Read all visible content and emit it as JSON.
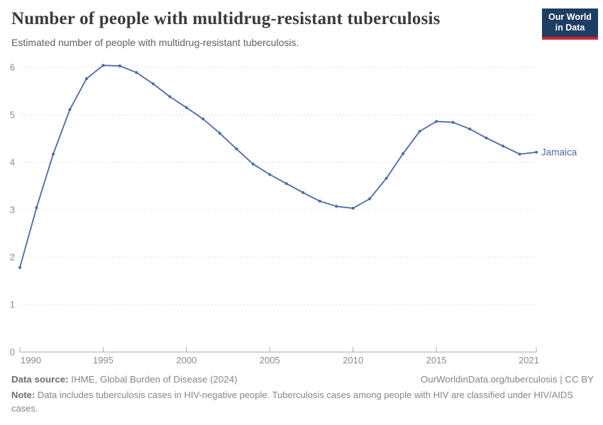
{
  "header": {
    "title": "Number of people with multidrug-resistant tuberculosis",
    "subtitle": "Estimated number of people with multidrug-resistant tuberculosis.",
    "logo": {
      "line1": "Our World",
      "line2": "in Data"
    }
  },
  "chart_data": {
    "type": "line",
    "title": "Number of people with multidrug-resistant tuberculosis",
    "xlabel": "",
    "ylabel": "",
    "x": [
      1990,
      1991,
      1992,
      1993,
      1994,
      1995,
      1996,
      1997,
      1998,
      1999,
      2000,
      2001,
      2002,
      2003,
      2004,
      2005,
      2006,
      2007,
      2008,
      2009,
      2010,
      2011,
      2012,
      2013,
      2014,
      2015,
      2016,
      2017,
      2018,
      2019,
      2020,
      2021
    ],
    "series": [
      {
        "name": "Jamaica",
        "color": "#4c69a5",
        "values": [
          1.78,
          3.04,
          4.17,
          5.11,
          5.76,
          6.04,
          6.03,
          5.89,
          5.65,
          5.38,
          5.15,
          4.91,
          4.61,
          4.28,
          3.96,
          3.74,
          3.55,
          3.36,
          3.18,
          3.07,
          3.03,
          3.23,
          3.66,
          4.18,
          4.65,
          4.86,
          4.84,
          4.7,
          4.51,
          4.34,
          4.17,
          4.21
        ]
      }
    ],
    "x_ticks": [
      1990,
      1995,
      2000,
      2005,
      2010,
      2015,
      2021
    ],
    "y_ticks": [
      0,
      1,
      2,
      3,
      4,
      5,
      6
    ],
    "xlim": [
      1990,
      2021
    ],
    "ylim": [
      0,
      6.3
    ],
    "grid": "horizontal-dashed",
    "legend_position": "end-of-line-label"
  },
  "colors": {
    "line": "#4c69a5",
    "grid": "#dcdcdc",
    "axis": "#a9a9a9",
    "tick_label": "#8a8a8a",
    "title": "#3b3b3b",
    "subtitle": "#5f5f5f",
    "footer": "#858585",
    "logo_bg": "#1d3d63",
    "logo_accent": "#cf2630"
  },
  "footer": {
    "source_label": "Data source:",
    "source_text": " IHME, Global Burden of Disease (2024)",
    "link_text": "OurWorldinData.org/tuberculosis | CC BY",
    "note_label": "Note:",
    "note_text": " Data includes tuberculosis cases in HIV-negative people. Tuberculosis cases among people with HIV are classified under HIV/AIDS cases."
  }
}
